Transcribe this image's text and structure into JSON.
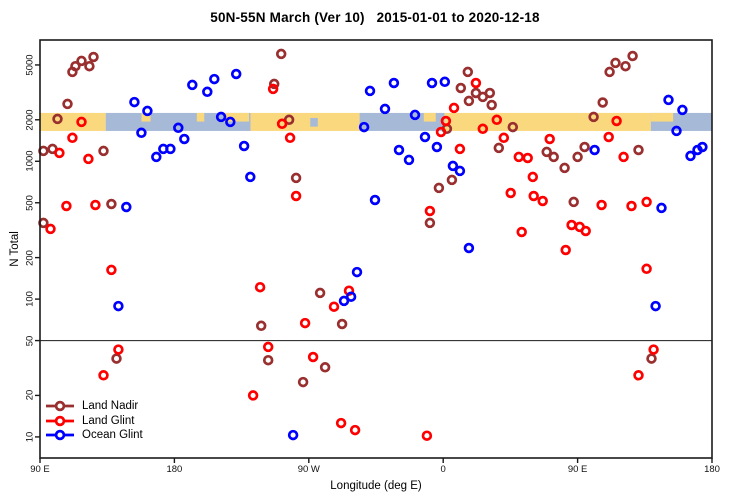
{
  "title": "50N-55N March (Ver 10)   2015-01-01 to 2020-12-18",
  "x_axis": {
    "label": "Longitude (deg E)",
    "ticks": [
      {
        "pos": 0,
        "label": "90 E"
      },
      {
        "pos": 90,
        "label": "180"
      },
      {
        "pos": 180,
        "label": "90 W"
      },
      {
        "pos": 270,
        "label": "0"
      },
      {
        "pos": 360,
        "label": "90 E"
      },
      {
        "pos": 450,
        "label": "180"
      }
    ]
  },
  "y_axis": {
    "label": "N Total",
    "ticks": [
      10,
      20,
      50,
      100,
      200,
      500,
      1000,
      2000,
      5000
    ]
  },
  "legend": {
    "items": [
      {
        "label": "Land Nadir",
        "color": "#992F2F"
      },
      {
        "label": "Land Glint",
        "color": "#FF0000"
      },
      {
        "label": "Ocean Glint",
        "color": "#0000FF"
      }
    ]
  },
  "chart_data": {
    "type": "scatter",
    "title": "50N-55N March (Ver 10)   2015-01-01 to 2020-12-18",
    "xlabel": "Longitude (deg E)",
    "ylabel": "N Total",
    "x_axis_note": "x = degrees eastward along wrapped longitude axis starting at 90E (range 0-450)",
    "xlim": [
      0,
      450
    ],
    "ylog_top": 3.88,
    "ylog_bottom": 0.847,
    "y_scale": "log10",
    "reference_line_n": 50,
    "marker": {
      "radius": 3.9,
      "stroke_width": 2.7
    },
    "surface_band": {
      "n_top": 2243,
      "n_bottom": 1660,
      "land_color": "#FAD87E",
      "ocean_color": "#A6B9D6",
      "segments": [
        {
          "d0": 0,
          "d1": 44,
          "surface": "land"
        },
        {
          "d0": 44,
          "d1": 141,
          "surface": "ocean"
        },
        {
          "d0": 141,
          "d1": 214,
          "surface": "land"
        },
        {
          "d0": 214,
          "d1": 271,
          "surface": "ocean"
        },
        {
          "d0": 271,
          "d1": 409,
          "surface": "land"
        },
        {
          "d0": 409,
          "d1": 450,
          "surface": "ocean"
        }
      ],
      "flecks": [
        {
          "d0": 68,
          "d1": 74,
          "surface": "land",
          "align": "top"
        },
        {
          "d0": 105,
          "d1": 110,
          "surface": "land",
          "align": "top"
        },
        {
          "d0": 123,
          "d1": 140,
          "surface": "land",
          "align": "top"
        },
        {
          "d0": 181,
          "d1": 186,
          "surface": "ocean",
          "align": "mid"
        },
        {
          "d0": 257,
          "d1": 265,
          "surface": "land",
          "align": "top"
        },
        {
          "d0": 409,
          "d1": 424,
          "surface": "land",
          "align": "top"
        }
      ]
    },
    "series": [
      {
        "name": "Land Nadir",
        "color": "#992F2F",
        "points": [
          [
            23.7,
            4900
          ],
          [
            27.8,
            5350
          ],
          [
            35.8,
            5710
          ],
          [
            33.1,
            4900
          ],
          [
            21.7,
            4450
          ],
          [
            18.4,
            2610
          ],
          [
            11.7,
            2030
          ],
          [
            2.3,
            1190
          ],
          [
            8.4,
            1230
          ],
          [
            42.5,
            1190
          ],
          [
            47.8,
            490
          ],
          [
            2.3,
            357
          ],
          [
            161.5,
            6010
          ],
          [
            156.8,
            3640
          ],
          [
            166.8,
            2000
          ],
          [
            171.5,
            757
          ],
          [
            51.2,
            37
          ],
          [
            152.8,
            36
          ],
          [
            176.2,
            25
          ],
          [
            187.6,
            111
          ],
          [
            148.1,
            64
          ],
          [
            202.3,
            66
          ],
          [
            190.9,
            32
          ],
          [
            286.5,
            4450
          ],
          [
            281.8,
            3400
          ],
          [
            291.9,
            3130
          ],
          [
            296.5,
            2930
          ],
          [
            301.2,
            3130
          ],
          [
            287.2,
            2740
          ],
          [
            302.5,
            2560
          ],
          [
            272.5,
            1720
          ],
          [
            316.6,
            1770
          ],
          [
            307.2,
            1250
          ],
          [
            275.8,
            733
          ],
          [
            267.1,
            641
          ],
          [
            261.1,
            357
          ],
          [
            370.7,
            2100
          ],
          [
            376.8,
            2670
          ],
          [
            381.4,
            4450
          ],
          [
            385.4,
            5170
          ],
          [
            392.1,
            4900
          ],
          [
            396.8,
            5810
          ],
          [
            339.3,
            1170
          ],
          [
            344.0,
            1076
          ],
          [
            351.3,
            895
          ],
          [
            364.7,
            1270
          ],
          [
            360.0,
            1076
          ],
          [
            400.8,
            1208
          ],
          [
            357.4,
            507
          ],
          [
            409.5,
            37
          ]
        ]
      },
      {
        "name": "Land Glint",
        "color": "#FF0000",
        "points": [
          [
            27.8,
            1930
          ],
          [
            21.7,
            1480
          ],
          [
            13.0,
            1150
          ],
          [
            32.4,
            1040
          ],
          [
            17.7,
            474
          ],
          [
            37.1,
            482
          ],
          [
            7.0,
            323
          ],
          [
            47.8,
            163
          ],
          [
            52.5,
            43
          ],
          [
            42.5,
            28
          ],
          [
            156.1,
            3350
          ],
          [
            162.1,
            1870
          ],
          [
            167.5,
            1480
          ],
          [
            171.5,
            560
          ],
          [
            147.4,
            122
          ],
          [
            206.9,
            115
          ],
          [
            196.9,
            88
          ],
          [
            177.5,
            67
          ],
          [
            152.8,
            45
          ],
          [
            182.9,
            38
          ],
          [
            142.7,
            20
          ],
          [
            201.6,
            12.6
          ],
          [
            211.0,
            11.2
          ],
          [
            259.1,
            10.2
          ],
          [
            291.9,
            3700
          ],
          [
            277.2,
            2440
          ],
          [
            271.8,
            1960
          ],
          [
            268.5,
            1630
          ],
          [
            305.9,
            2000
          ],
          [
            296.5,
            1720
          ],
          [
            310.6,
            1480
          ],
          [
            281.2,
            1230
          ],
          [
            320.6,
            1076
          ],
          [
            326.6,
            1057
          ],
          [
            330.0,
            770
          ],
          [
            315.2,
            589
          ],
          [
            330.6,
            560
          ],
          [
            336.6,
            515
          ],
          [
            261.1,
            436
          ],
          [
            322.6,
            307
          ],
          [
            352.0,
            227
          ],
          [
            341.3,
            1450
          ],
          [
            386.1,
            1960
          ],
          [
            380.8,
            1500
          ],
          [
            390.8,
            1076
          ],
          [
            376.1,
            482
          ],
          [
            396.1,
            474
          ],
          [
            406.2,
            507
          ],
          [
            406.2,
            166
          ],
          [
            410.9,
            43
          ],
          [
            400.8,
            28
          ],
          [
            356.0,
            345
          ],
          [
            361.4,
            334
          ],
          [
            365.4,
            312
          ]
        ]
      },
      {
        "name": "Ocean Glint",
        "color": "#0000FF",
        "points": [
          [
            102.0,
            3580
          ],
          [
            112.0,
            3190
          ],
          [
            116.7,
            3950
          ],
          [
            131.4,
            4300
          ],
          [
            63.2,
            2690
          ],
          [
            71.9,
            2320
          ],
          [
            67.9,
            1610
          ],
          [
            92.6,
            1750
          ],
          [
            96.6,
            1450
          ],
          [
            77.9,
            1076
          ],
          [
            82.6,
            1230
          ],
          [
            87.3,
            1230
          ],
          [
            57.8,
            466
          ],
          [
            52.5,
            89
          ],
          [
            221.0,
            3240
          ],
          [
            121.3,
            2100
          ],
          [
            127.4,
            1930
          ],
          [
            217.0,
            1770
          ],
          [
            136.7,
            1290
          ],
          [
            140.8,
            770
          ],
          [
            224.3,
            524
          ],
          [
            169.5,
            10.3
          ],
          [
            212.3,
            157
          ],
          [
            208.3,
            104
          ],
          [
            203.6,
            97
          ],
          [
            237.0,
            3700
          ],
          [
            262.5,
            3700
          ],
          [
            271.1,
            3770
          ],
          [
            231.0,
            2400
          ],
          [
            251.1,
            2170
          ],
          [
            257.8,
            1500
          ],
          [
            265.8,
            1270
          ],
          [
            240.4,
            1208
          ],
          [
            247.1,
            1023
          ],
          [
            276.5,
            925
          ],
          [
            281.2,
            851
          ],
          [
            287.2,
            235
          ],
          [
            412.2,
            89
          ],
          [
            416.2,
            459
          ],
          [
            420.9,
            2790
          ],
          [
            430.2,
            2360
          ],
          [
            426.2,
            1660
          ],
          [
            435.6,
            1094
          ],
          [
            440.3,
            1208
          ],
          [
            443.6,
            1270
          ],
          [
            371.4,
            1208
          ]
        ]
      }
    ]
  }
}
